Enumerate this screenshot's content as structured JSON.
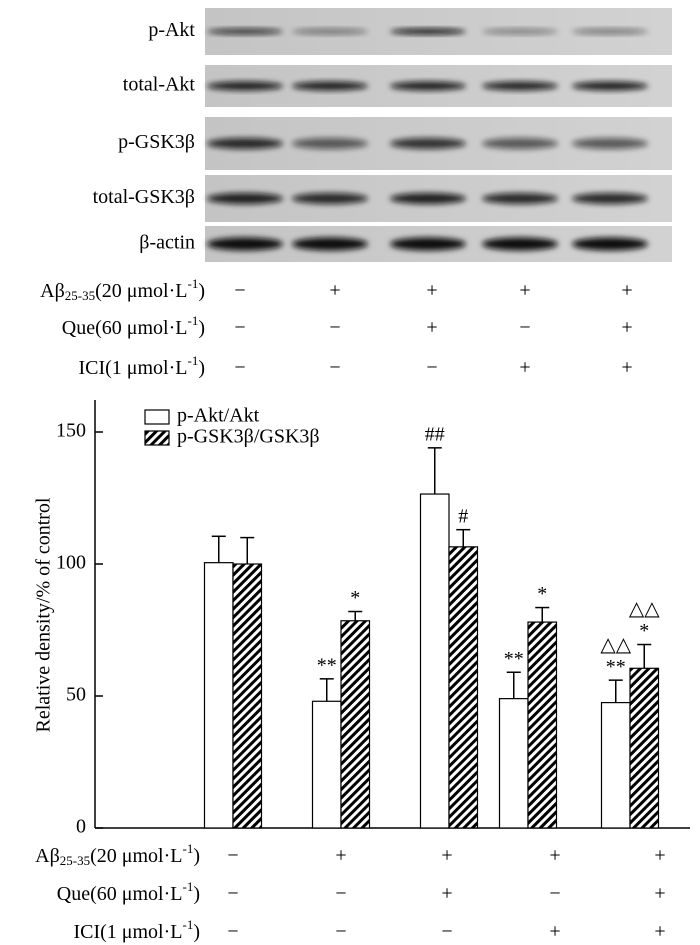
{
  "blot": {
    "rows": [
      "p-Akt",
      "total-Akt",
      "p-GSK3β",
      "total-GSK3β",
      "β-actin"
    ]
  },
  "conditions": [
    {
      "label": [
        {
          "text": "Aβ"
        },
        {
          "text": "25-35",
          "pos": "sub"
        },
        {
          "text": "(20 μmol·L"
        },
        {
          "text": "-1",
          "pos": "sup"
        },
        {
          "text": ")"
        }
      ],
      "marks": [
        "−",
        "+",
        "+",
        "+",
        "+"
      ]
    },
    {
      "label": [
        {
          "text": "Que(60 μmol·L"
        },
        {
          "text": "-1",
          "pos": "sup"
        },
        {
          "text": ")"
        }
      ],
      "marks": [
        "−",
        "−",
        "+",
        "−",
        "+"
      ]
    },
    {
      "label": [
        {
          "text": "ICI(1 μmol·L"
        },
        {
          "text": "-1",
          "pos": "sup"
        },
        {
          "text": ")"
        }
      ],
      "marks": [
        "−",
        "−",
        "−",
        "+",
        "+"
      ]
    }
  ],
  "chart_data": {
    "type": "bar",
    "y_label": "Relative density/% of control",
    "categories": [
      null,
      null,
      null,
      null,
      null
    ],
    "series": [
      {
        "name": "p-Akt/Akt",
        "color": "#ffffff",
        "pattern": "solid",
        "values": [
          100.5,
          48,
          126.5,
          49,
          47.5
        ],
        "errors": [
          10,
          8.5,
          17.5,
          10,
          8.5
        ],
        "annotations": [
          null,
          [
            "**"
          ],
          [
            "##"
          ],
          [
            "**"
          ],
          [
            "△△",
            "**"
          ]
        ]
      },
      {
        "name": "p-GSK3β/GSK3β",
        "color": "#000000",
        "pattern": "hatch",
        "values": [
          100,
          78.5,
          106.5,
          78,
          60.5
        ],
        "errors": [
          10,
          3.5,
          6.5,
          5.5,
          9
        ],
        "annotations": [
          null,
          [
            "*"
          ],
          [
            "#"
          ],
          [
            "*"
          ],
          [
            "△△",
            "*"
          ]
        ]
      }
    ],
    "ylim": [
      0,
      160
    ],
    "yticks": [
      0,
      50,
      100,
      150
    ],
    "grid": false,
    "legend": "upper left"
  }
}
